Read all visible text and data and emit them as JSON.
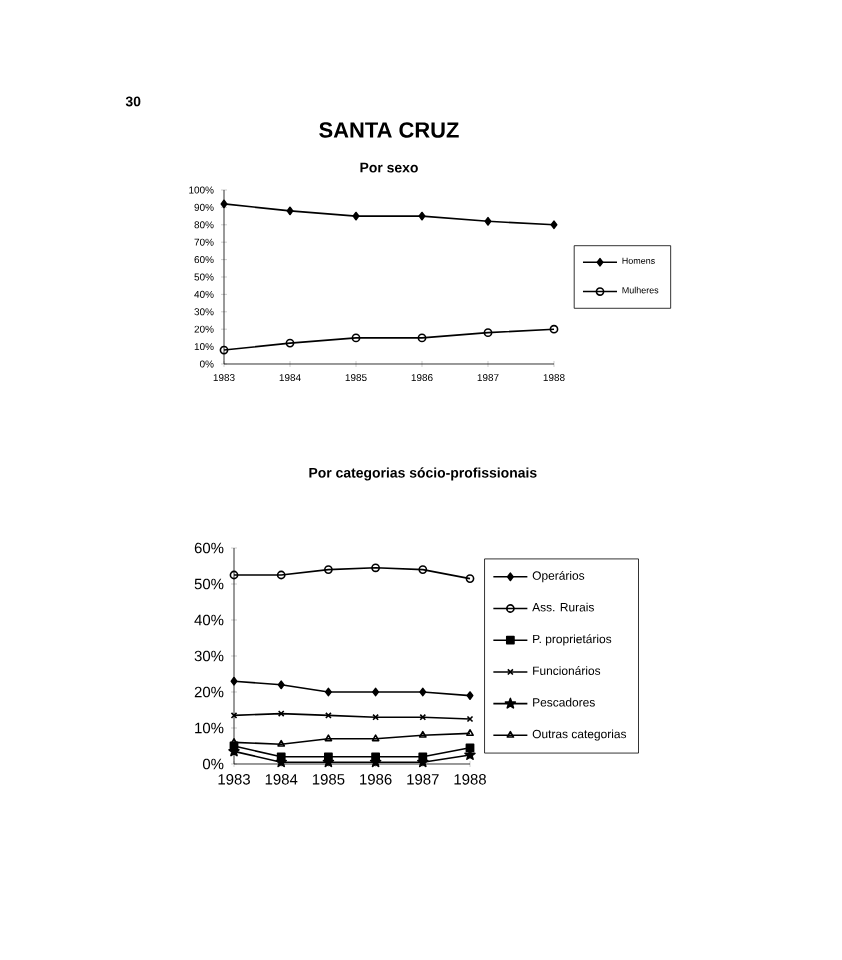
{
  "chart_data": [
    {
      "type": "line",
      "title": "SANTA CRUZ",
      "subtitle": "Por sexo",
      "annotations": [
        "30"
      ],
      "categories": [
        "1983",
        "1984",
        "1985",
        "1986",
        "1987",
        "1988"
      ],
      "series": [
        {
          "name": "Homens",
          "color": "#000000",
          "marker": "diamond",
          "values": [
            92,
            88,
            85,
            85,
            82,
            80
          ]
        },
        {
          "name": "Mulheres",
          "color": "#000000",
          "marker": "circle",
          "values": [
            8,
            12,
            15,
            15,
            18,
            20
          ]
        }
      ],
      "ylim": [
        0,
        100
      ],
      "yticks": [
        {
          "value": 0,
          "label": "0%"
        },
        {
          "value": 10,
          "label": "10%"
        },
        {
          "value": 20,
          "label": "20%"
        },
        {
          "value": 30,
          "label": "30%"
        },
        {
          "value": 40,
          "label": "40%"
        },
        {
          "value": 50,
          "label": "50%"
        },
        {
          "value": 60,
          "label": "60%"
        },
        {
          "value": 70,
          "label": "70%"
        },
        {
          "value": 80,
          "label": "80%"
        },
        {
          "value": 90,
          "label": "90%"
        },
        {
          "value": 100,
          "label": "100%"
        }
      ],
      "legend": "right",
      "grid": false
    },
    {
      "type": "line",
      "title": "Por categorias sócio-profissionais",
      "categories": [
        "1983",
        "1984",
        "1985",
        "1986",
        "1987",
        "1988"
      ],
      "series": [
        {
          "name": "Operários",
          "color": "#000000",
          "marker": "diamond",
          "values": [
            23,
            22,
            20,
            20,
            20,
            19
          ]
        },
        {
          "name": "Ass. Rurais",
          "color": "#000000",
          "marker": "circle",
          "values": [
            52.5,
            52.5,
            54,
            54.5,
            54,
            51.5
          ]
        },
        {
          "name": "P. proprietários",
          "color": "#000000",
          "marker": "square",
          "values": [
            5,
            2,
            2,
            2,
            2,
            4.5
          ]
        },
        {
          "name": "Funcionários",
          "color": "#000000",
          "marker": "cross",
          "values": [
            13.5,
            14,
            13.5,
            13,
            13,
            12.5
          ]
        },
        {
          "name": "Pescadores",
          "color": "#000000",
          "marker": "star",
          "values": [
            3.5,
            0.5,
            0.5,
            0.5,
            0.5,
            2.5
          ]
        },
        {
          "name": "Outras categorias",
          "color": "#000000",
          "marker": "triangle",
          "values": [
            6,
            5.5,
            7,
            7,
            8,
            8.5
          ]
        }
      ],
      "ylim": [
        0,
        60
      ],
      "yticks": [
        {
          "value": 0,
          "label": "0%"
        },
        {
          "value": 10,
          "label": "10%"
        },
        {
          "value": 20,
          "label": "20%"
        },
        {
          "value": 30,
          "label": "30%"
        },
        {
          "value": 40,
          "label": "40%"
        },
        {
          "value": 50,
          "label": "50%"
        },
        {
          "value": 60,
          "label": "60%"
        }
      ],
      "legend": "right",
      "grid": false
    }
  ]
}
